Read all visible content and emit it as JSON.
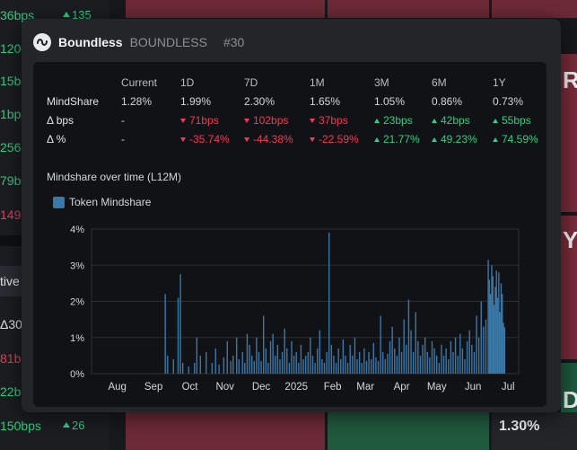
{
  "background": {
    "left_rows": [
      {
        "value": "36bps",
        "value_color": "pos",
        "change": "135",
        "top": 6
      },
      {
        "value": "120",
        "value_color": "pos",
        "change": "",
        "top": 43
      },
      {
        "value": "15b",
        "value_color": "pos",
        "change": "",
        "top": 79
      },
      {
        "value": "1bp",
        "value_color": "pos",
        "change": "",
        "top": 116
      },
      {
        "value": "256",
        "value_color": "pos",
        "change": "",
        "top": 153
      },
      {
        "value": "79b",
        "value_color": "pos",
        "change": "",
        "top": 190
      },
      {
        "value": "149",
        "value_color": "neg",
        "change": "",
        "top": 228
      },
      {
        "value": "Δ30",
        "value_color": "wht",
        "change": "",
        "top": 350
      },
      {
        "value": "81b",
        "value_color": "neg",
        "change": "",
        "top": 388
      },
      {
        "value": "22b",
        "value_color": "pos",
        "change": "",
        "top": 425
      },
      {
        "value": "150bps",
        "value_color": "pos",
        "change": "26",
        "top": 463
      }
    ],
    "filter_label": "tive",
    "right_partial_texts": [
      "RO",
      "YS",
      "DE"
    ],
    "bottom_tile_value": "1.30%"
  },
  "modal": {
    "name": "Boundless",
    "ticker": "BOUNDLESS",
    "rank": "#30",
    "table": {
      "columns": [
        "",
        "Current",
        "1D",
        "7D",
        "1M",
        "3M",
        "6M",
        "1Y"
      ],
      "rows": [
        {
          "label": "MindShare",
          "cells": [
            {
              "text": "1.28%",
              "dir": "none"
            },
            {
              "text": "1.99%",
              "dir": "none"
            },
            {
              "text": "2.30%",
              "dir": "none"
            },
            {
              "text": "1.65%",
              "dir": "none"
            },
            {
              "text": "1.05%",
              "dir": "none"
            },
            {
              "text": "0.86%",
              "dir": "none"
            },
            {
              "text": "0.73%",
              "dir": "none"
            }
          ]
        },
        {
          "label": "Δ bps",
          "cells": [
            {
              "text": "-",
              "dir": "none"
            },
            {
              "text": "71bps",
              "dir": "down"
            },
            {
              "text": "102bps",
              "dir": "down"
            },
            {
              "text": "37bps",
              "dir": "down"
            },
            {
              "text": "23bps",
              "dir": "up"
            },
            {
              "text": "42bps",
              "dir": "up"
            },
            {
              "text": "55bps",
              "dir": "up"
            }
          ]
        },
        {
          "label": "Δ %",
          "cells": [
            {
              "text": "-",
              "dir": "none"
            },
            {
              "text": "-35.74%",
              "dir": "down"
            },
            {
              "text": "-44.38%",
              "dir": "down"
            },
            {
              "text": "-22.59%",
              "dir": "down"
            },
            {
              "text": "21.77%",
              "dir": "up"
            },
            {
              "text": "49.23%",
              "dir": "up"
            },
            {
              "text": "74.59%",
              "dir": "up"
            }
          ]
        }
      ]
    },
    "chart_title": "Mindshare over time (L12M)"
  },
  "colors": {
    "positive": "#2fcf83",
    "negative": "#f23b55",
    "bar": "#3a78a8",
    "panel": "#111215",
    "modal": "#232529"
  },
  "chart_data": {
    "type": "bar",
    "title": "Mindshare over time (L12M)",
    "series": [
      {
        "name": "Token Mindshare"
      }
    ],
    "x_tick_labels": [
      "Aug",
      "Sep",
      "Oct",
      "Nov",
      "Dec",
      "2025",
      "Feb",
      "Mar",
      "Apr",
      "May",
      "Jun",
      "Jul"
    ],
    "y_tick_labels": [
      "0%",
      "1%",
      "2%",
      "3%",
      "4%"
    ],
    "ylim": [
      0,
      4
    ],
    "y_unit": "%",
    "grid": true,
    "legend_position": "top-left",
    "bars": [
      {
        "day": 63,
        "value": 2.2
      },
      {
        "day": 65,
        "value": 0.5
      },
      {
        "day": 70,
        "value": 0.4
      },
      {
        "day": 74,
        "value": 2.1
      },
      {
        "day": 76,
        "value": 2.75
      },
      {
        "day": 78,
        "value": 0.3
      },
      {
        "day": 83,
        "value": 0.2
      },
      {
        "day": 88,
        "value": 0.3
      },
      {
        "day": 90,
        "value": 1.0
      },
      {
        "day": 93,
        "value": 0.5
      },
      {
        "day": 98,
        "value": 0.6
      },
      {
        "day": 103,
        "value": 0.3
      },
      {
        "day": 106,
        "value": 0.7
      },
      {
        "day": 109,
        "value": 0.25
      },
      {
        "day": 113,
        "value": 0.45
      },
      {
        "day": 116,
        "value": 0.9
      },
      {
        "day": 119,
        "value": 0.35
      },
      {
        "day": 121,
        "value": 0.5
      },
      {
        "day": 124,
        "value": 1.0
      },
      {
        "day": 126,
        "value": 0.4
      },
      {
        "day": 129,
        "value": 0.6
      },
      {
        "day": 131,
        "value": 0.3
      },
      {
        "day": 133,
        "value": 1.1
      },
      {
        "day": 135,
        "value": 0.8
      },
      {
        "day": 137,
        "value": 0.5
      },
      {
        "day": 139,
        "value": 0.35
      },
      {
        "day": 141,
        "value": 1.0
      },
      {
        "day": 143,
        "value": 0.6
      },
      {
        "day": 145,
        "value": 0.35
      },
      {
        "day": 147,
        "value": 1.6
      },
      {
        "day": 149,
        "value": 0.7
      },
      {
        "day": 151,
        "value": 0.3
      },
      {
        "day": 153,
        "value": 0.9
      },
      {
        "day": 155,
        "value": 1.1
      },
      {
        "day": 157,
        "value": 0.5
      },
      {
        "day": 159,
        "value": 0.8
      },
      {
        "day": 161,
        "value": 0.4
      },
      {
        "day": 163,
        "value": 0.6
      },
      {
        "day": 165,
        "value": 1.25
      },
      {
        "day": 167,
        "value": 0.7
      },
      {
        "day": 169,
        "value": 0.3
      },
      {
        "day": 171,
        "value": 0.9
      },
      {
        "day": 173,
        "value": 0.5
      },
      {
        "day": 175,
        "value": 0.6
      },
      {
        "day": 177,
        "value": 0.3
      },
      {
        "day": 179,
        "value": 0.8
      },
      {
        "day": 181,
        "value": 0.4
      },
      {
        "day": 183,
        "value": 0.5
      },
      {
        "day": 185,
        "value": 0.6
      },
      {
        "day": 187,
        "value": 1.0
      },
      {
        "day": 189,
        "value": 0.5
      },
      {
        "day": 191,
        "value": 0.3
      },
      {
        "day": 193,
        "value": 0.7
      },
      {
        "day": 195,
        "value": 1.2
      },
      {
        "day": 197,
        "value": 0.4
      },
      {
        "day": 199,
        "value": 0.3
      },
      {
        "day": 201,
        "value": 0.6
      },
      {
        "day": 203,
        "value": 3.9
      },
      {
        "day": 205,
        "value": 0.8
      },
      {
        "day": 207,
        "value": 0.5
      },
      {
        "day": 209,
        "value": 0.3
      },
      {
        "day": 211,
        "value": 0.7
      },
      {
        "day": 213,
        "value": 0.4
      },
      {
        "day": 215,
        "value": 0.95
      },
      {
        "day": 217,
        "value": 0.5
      },
      {
        "day": 219,
        "value": 0.3
      },
      {
        "day": 221,
        "value": 0.8
      },
      {
        "day": 223,
        "value": 0.5
      },
      {
        "day": 225,
        "value": 1.0
      },
      {
        "day": 227,
        "value": 0.4
      },
      {
        "day": 229,
        "value": 0.6
      },
      {
        "day": 231,
        "value": 0.3
      },
      {
        "day": 233,
        "value": 0.7
      },
      {
        "day": 235,
        "value": 0.35
      },
      {
        "day": 237,
        "value": 0.6
      },
      {
        "day": 239,
        "value": 0.4
      },
      {
        "day": 241,
        "value": 0.85
      },
      {
        "day": 243,
        "value": 0.45
      },
      {
        "day": 245,
        "value": 0.35
      },
      {
        "day": 247,
        "value": 1.6
      },
      {
        "day": 249,
        "value": 0.6
      },
      {
        "day": 251,
        "value": 0.4
      },
      {
        "day": 253,
        "value": 0.55
      },
      {
        "day": 255,
        "value": 0.9
      },
      {
        "day": 257,
        "value": 1.3
      },
      {
        "day": 259,
        "value": 0.7
      },
      {
        "day": 261,
        "value": 0.5
      },
      {
        "day": 263,
        "value": 1.0
      },
      {
        "day": 265,
        "value": 0.6
      },
      {
        "day": 267,
        "value": 1.5
      },
      {
        "day": 269,
        "value": 0.8
      },
      {
        "day": 271,
        "value": 2.05
      },
      {
        "day": 273,
        "value": 1.2
      },
      {
        "day": 275,
        "value": 0.6
      },
      {
        "day": 277,
        "value": 1.7
      },
      {
        "day": 279,
        "value": 0.9
      },
      {
        "day": 281,
        "value": 0.5
      },
      {
        "day": 283,
        "value": 0.8
      },
      {
        "day": 285,
        "value": 1.0
      },
      {
        "day": 287,
        "value": 0.6
      },
      {
        "day": 289,
        "value": 0.45
      },
      {
        "day": 291,
        "value": 0.9
      },
      {
        "day": 293,
        "value": 0.7
      },
      {
        "day": 295,
        "value": 0.5
      },
      {
        "day": 297,
        "value": 0.3
      },
      {
        "day": 299,
        "value": 0.8
      },
      {
        "day": 301,
        "value": 0.5
      },
      {
        "day": 303,
        "value": 0.7
      },
      {
        "day": 305,
        "value": 0.4
      },
      {
        "day": 307,
        "value": 0.9
      },
      {
        "day": 309,
        "value": 0.6
      },
      {
        "day": 311,
        "value": 1.0
      },
      {
        "day": 313,
        "value": 0.5
      },
      {
        "day": 315,
        "value": 1.1
      },
      {
        "day": 317,
        "value": 0.7
      },
      {
        "day": 319,
        "value": 0.4
      },
      {
        "day": 321,
        "value": 0.9
      },
      {
        "day": 323,
        "value": 1.2
      },
      {
        "day": 325,
        "value": 0.8
      },
      {
        "day": 327,
        "value": 0.6
      },
      {
        "day": 329,
        "value": 1.6
      },
      {
        "day": 331,
        "value": 1.0
      },
      {
        "day": 333,
        "value": 2.0
      },
      {
        "day": 335,
        "value": 1.3
      },
      {
        "day": 337,
        "value": 1.5
      },
      {
        "day": 339,
        "value": 3.15
      },
      {
        "day": 340,
        "value": 2.6
      },
      {
        "day": 341,
        "value": 2.2
      },
      {
        "day": 342,
        "value": 3.0
      },
      {
        "day": 343,
        "value": 2.7
      },
      {
        "day": 344,
        "value": 1.9
      },
      {
        "day": 345,
        "value": 2.4
      },
      {
        "day": 346,
        "value": 2.85
      },
      {
        "day": 347,
        "value": 2.1
      },
      {
        "day": 348,
        "value": 2.8
      },
      {
        "day": 349,
        "value": 1.7
      },
      {
        "day": 350,
        "value": 2.5
      },
      {
        "day": 351,
        "value": 2.2
      },
      {
        "day": 352,
        "value": 1.4
      },
      {
        "day": 353,
        "value": 1.28
      }
    ]
  }
}
